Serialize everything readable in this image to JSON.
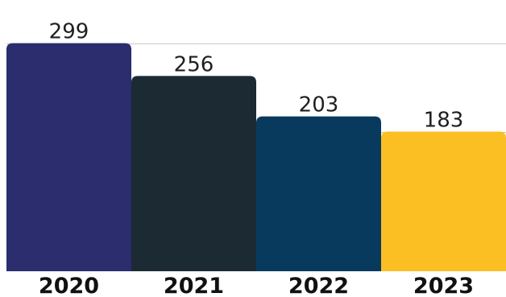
{
  "chart_data": {
    "type": "bar",
    "categories": [
      "2020",
      "2021",
      "2022",
      "2023"
    ],
    "values": [
      299,
      256,
      203,
      183
    ],
    "ylim": [
      0,
      345
    ],
    "grid": true,
    "gridlines": [
      299,
      183
    ],
    "colors": [
      "#2b2d6e",
      "#1c2a33",
      "#083a5e",
      "#fbbf24"
    ],
    "data_labels": [
      "299",
      "256",
      "203",
      "183"
    ],
    "title": "",
    "xlabel": "",
    "ylabel": ""
  }
}
